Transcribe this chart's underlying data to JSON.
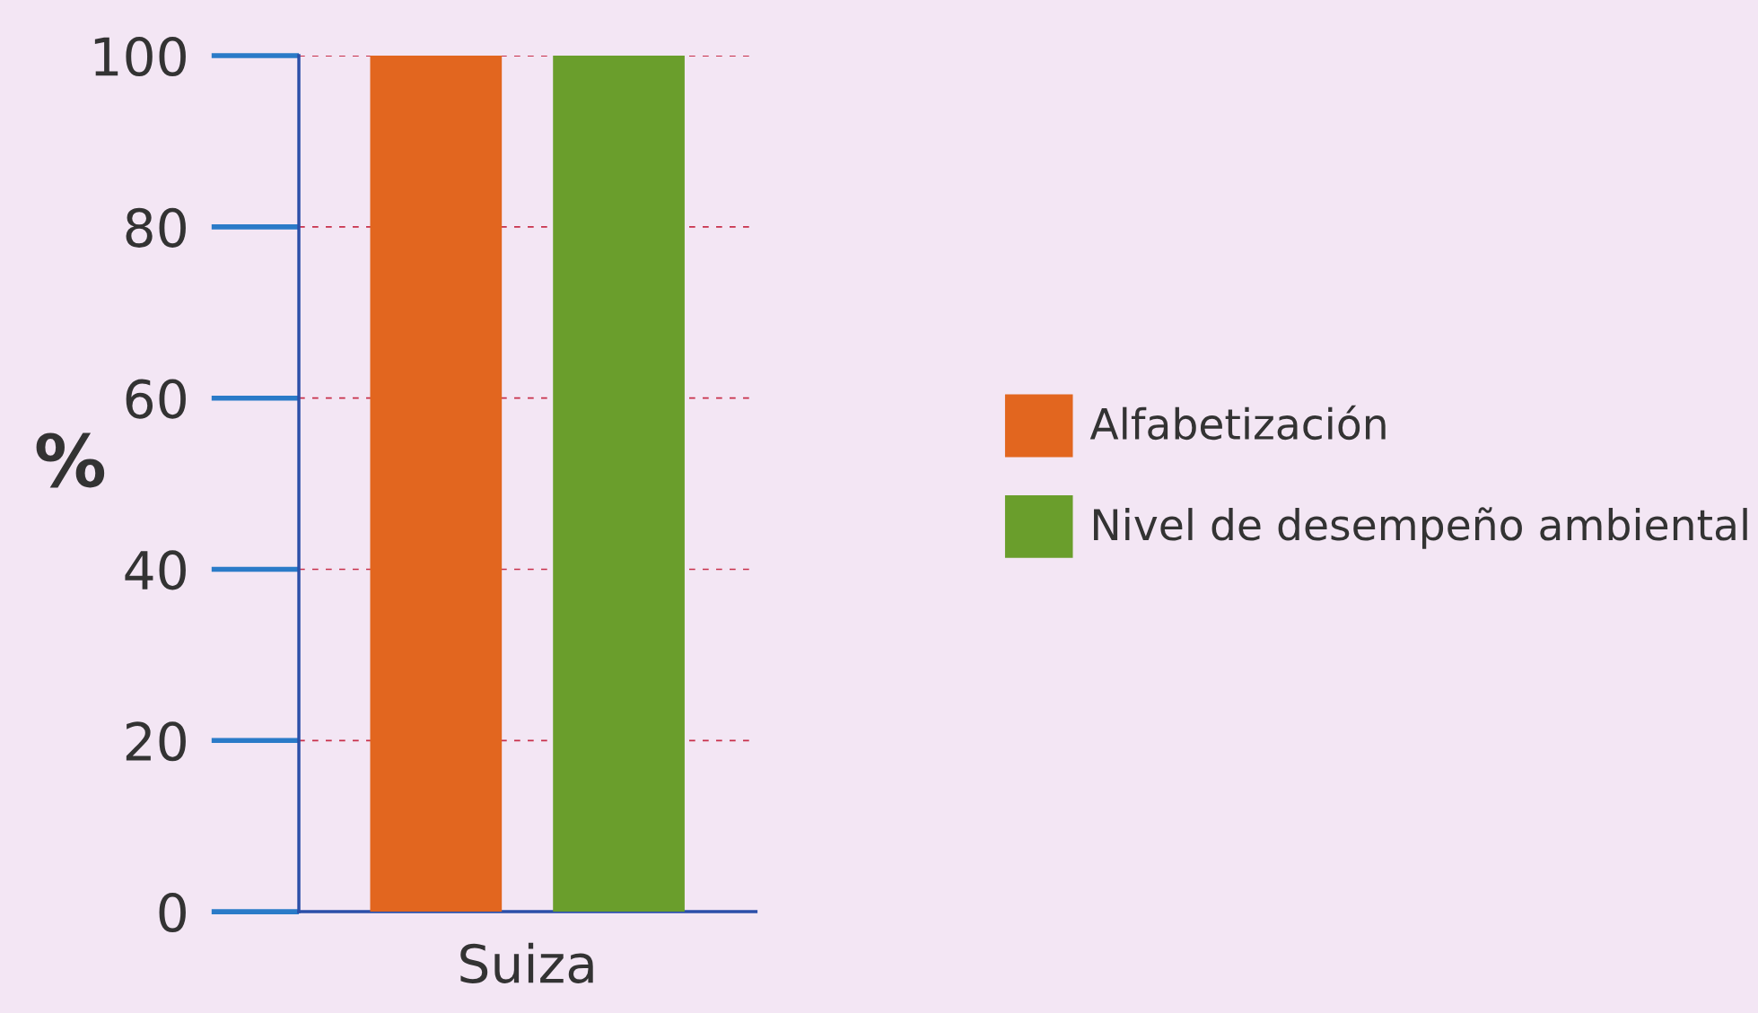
{
  "chart_data": {
    "type": "bar",
    "ylabel": "%",
    "categories": [
      "Suiza"
    ],
    "series": [
      {
        "name": "Alfabetización",
        "color": "#e2661f",
        "values": [
          100
        ]
      },
      {
        "name": "Nivel de desempeño ambiental",
        "color": "#6a9e2c",
        "values": [
          100
        ]
      }
    ],
    "ylim": [
      0,
      100
    ],
    "yticks": [
      0,
      20,
      40,
      60,
      80,
      100
    ],
    "grid": "y",
    "legend": "right"
  }
}
